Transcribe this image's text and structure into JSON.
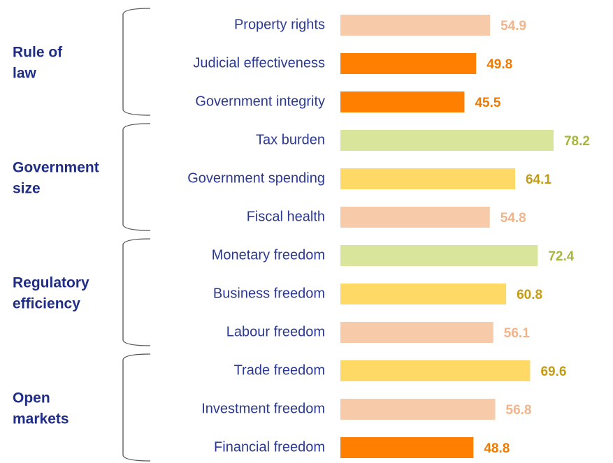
{
  "chart_data": {
    "type": "bar",
    "orientation": "horizontal",
    "xlim": [
      0,
      100
    ],
    "groups": [
      {
        "label": [
          "Rule of",
          "law"
        ],
        "categories": [
          "Property rights",
          "Judicial effectiveness",
          "Government integrity"
        ],
        "values": [
          54.9,
          49.8,
          45.5
        ],
        "colors": [
          "#f7caa9",
          "#ff7f00",
          "#ff7f00"
        ],
        "label_colors": [
          "#f2b48a",
          "#f07a00",
          "#f07a00"
        ]
      },
      {
        "label": [
          "Government",
          "size"
        ],
        "categories": [
          "Tax burden",
          "Government spending",
          "Fiscal health"
        ],
        "values": [
          78.2,
          64.1,
          54.8
        ],
        "colors": [
          "#d9e59a",
          "#fed966",
          "#f7caa9"
        ],
        "label_colors": [
          "#a9b63c",
          "#c49c14",
          "#f2b48a"
        ]
      },
      {
        "label": [
          "Regulatory",
          "efficiency"
        ],
        "categories": [
          "Monetary freedom",
          "Business freedom",
          "Labour freedom"
        ],
        "values": [
          72.4,
          60.8,
          56.1
        ],
        "colors": [
          "#d9e59a",
          "#fed966",
          "#f7caa9"
        ],
        "label_colors": [
          "#a9b63c",
          "#c49c14",
          "#f2b48a"
        ]
      },
      {
        "label": [
          "Open",
          "markets"
        ],
        "categories": [
          "Trade freedom",
          "Investment freedom",
          "Financial freedom"
        ],
        "values": [
          69.6,
          56.8,
          48.8
        ],
        "colors": [
          "#fed966",
          "#f7caa9",
          "#ff7f00"
        ],
        "label_colors": [
          "#c49c14",
          "#f2b48a",
          "#f07a00"
        ]
      }
    ]
  }
}
